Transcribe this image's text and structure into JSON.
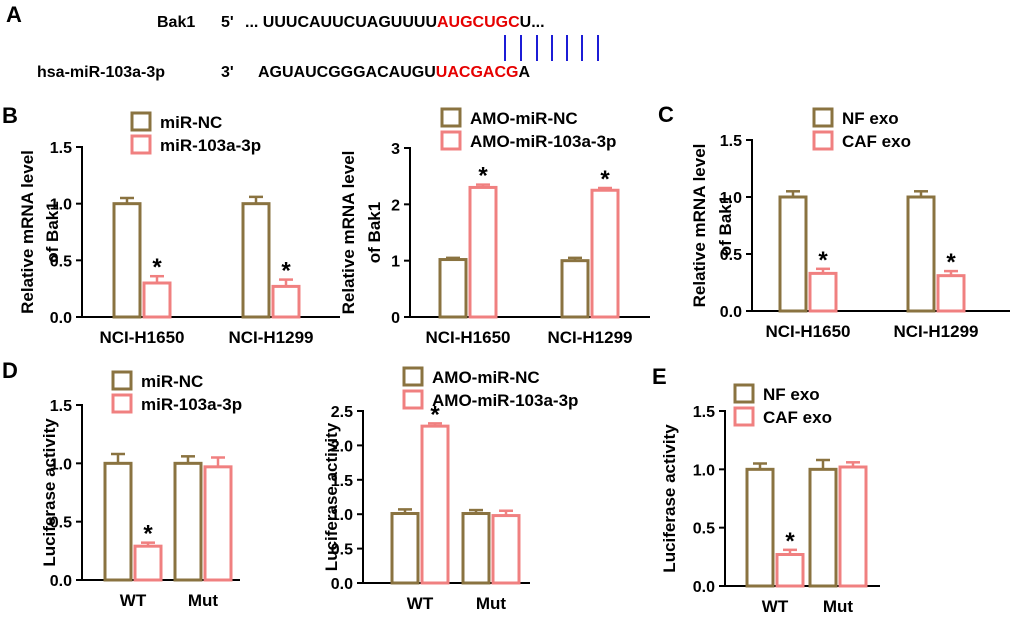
{
  "colors": {
    "control": "#8a7340",
    "treatment": "#f08080",
    "seed": "#e60000",
    "pairing": "#1c1cd6",
    "axis": "#000000"
  },
  "panel_a": {
    "panel_label": "A",
    "target": {
      "name": "Bak1",
      "end": "5'",
      "prefix": "... UUUCAUUCUAGUUUU",
      "seed": "AUGCUGC",
      "suffix": "U..."
    },
    "mirna": {
      "name": "hsa-miR-103a-3p",
      "end": "3'",
      "prefix": "AGUAUCGGGACAUGU",
      "seed": "UACGACG",
      "suffix": "A"
    }
  },
  "chart_data": [
    {
      "panel": "B",
      "show_panel_label": true,
      "type": "bar",
      "ylabel": "Relative mRNA level of Bak1",
      "ylabel_lines": [
        "Relative mRNA level",
        "of Bak1"
      ],
      "categories": [
        "NCI-H1650",
        "NCI-H1299"
      ],
      "ylim": [
        0,
        1.5
      ],
      "yticks": [
        "0.0",
        "0.5",
        "1.0",
        "1.5"
      ],
      "legend_position": "top",
      "series": [
        {
          "name": "miR-NC",
          "color_key": "control",
          "values": [
            1.0,
            1.0
          ],
          "errors": [
            0.05,
            0.06
          ]
        },
        {
          "name": "miR-103a-3p",
          "color_key": "treatment",
          "values": [
            0.3,
            0.27
          ],
          "errors": [
            0.06,
            0.06
          ]
        }
      ],
      "annotations": [
        {
          "series": 1,
          "category": 0,
          "text": "*"
        },
        {
          "series": 1,
          "category": 1,
          "text": "*"
        }
      ]
    },
    {
      "panel": "B2",
      "show_panel_label": false,
      "type": "bar",
      "ylabel": "Relative mRNA level of Bak1",
      "ylabel_lines": [
        "Relative mRNA level",
        "of Bak1"
      ],
      "categories": [
        "NCI-H1650",
        "NCI-H1299"
      ],
      "ylim": [
        0,
        3
      ],
      "yticks": [
        "0",
        "1",
        "2",
        "3"
      ],
      "legend_position": "top",
      "series": [
        {
          "name": "AMO-miR-NC",
          "color_key": "control",
          "values": [
            1.02,
            1.0
          ],
          "errors": [
            0.03,
            0.05
          ]
        },
        {
          "name": "AMO-miR-103a-3p",
          "color_key": "treatment",
          "values": [
            2.3,
            2.25
          ],
          "errors": [
            0.05,
            0.04
          ]
        }
      ],
      "annotations": [
        {
          "series": 1,
          "category": 0,
          "text": "*"
        },
        {
          "series": 1,
          "category": 1,
          "text": "*"
        }
      ]
    },
    {
      "panel": "C",
      "show_panel_label": true,
      "type": "bar",
      "ylabel": "Relative mRNA level of Bak1",
      "ylabel_lines": [
        "Relative mRNA level",
        "of Bak1"
      ],
      "categories": [
        "NCI-H1650",
        "NCI-H1299"
      ],
      "ylim": [
        0,
        1.5
      ],
      "yticks": [
        "0.0",
        "0.5",
        "1.0",
        "1.5"
      ],
      "legend_position": "top",
      "series": [
        {
          "name": "NF exo",
          "color_key": "control",
          "values": [
            1.0,
            1.0
          ],
          "errors": [
            0.05,
            0.05
          ]
        },
        {
          "name": "CAF exo",
          "color_key": "treatment",
          "values": [
            0.33,
            0.31
          ],
          "errors": [
            0.04,
            0.04
          ]
        }
      ],
      "annotations": [
        {
          "series": 1,
          "category": 0,
          "text": "*"
        },
        {
          "series": 1,
          "category": 1,
          "text": "*"
        }
      ]
    },
    {
      "panel": "D",
      "show_panel_label": true,
      "type": "bar",
      "ylabel": "Luciferase activity",
      "ylabel_lines": [
        "Luciferase activity"
      ],
      "categories": [
        "WT",
        "Mut"
      ],
      "ylim": [
        0,
        1.5
      ],
      "yticks": [
        "0.0",
        "0.5",
        "1.0",
        "1.5"
      ],
      "legend_position": "top",
      "series": [
        {
          "name": "miR-NC",
          "color_key": "control",
          "values": [
            1.0,
            1.0
          ],
          "errors": [
            0.08,
            0.06
          ]
        },
        {
          "name": "miR-103a-3p",
          "color_key": "treatment",
          "values": [
            0.29,
            0.97
          ],
          "errors": [
            0.03,
            0.08
          ]
        }
      ],
      "annotations": [
        {
          "series": 1,
          "category": 0,
          "text": "*"
        }
      ]
    },
    {
      "panel": "D2",
      "show_panel_label": false,
      "type": "bar",
      "ylabel": "Luciferase activity",
      "ylabel_lines": [
        "Luciferase activity"
      ],
      "categories": [
        "WT",
        "Mut"
      ],
      "ylim": [
        0,
        2.5
      ],
      "yticks": [
        "0.0",
        "0.5",
        "1.0",
        "1.5",
        "2.0",
        "2.5"
      ],
      "legend_position": "top",
      "series": [
        {
          "name": "AMO-miR-NC",
          "color_key": "control",
          "values": [
            1.01,
            1.01
          ],
          "errors": [
            0.06,
            0.05
          ]
        },
        {
          "name": "AMO-miR-103a-3p",
          "color_key": "treatment",
          "values": [
            2.28,
            0.98
          ],
          "errors": [
            0.04,
            0.07
          ]
        }
      ],
      "annotations": [
        {
          "series": 1,
          "category": 0,
          "text": "*"
        }
      ]
    },
    {
      "panel": "E",
      "show_panel_label": true,
      "type": "bar",
      "ylabel": "Luciferase activity",
      "ylabel_lines": [
        "Luciferase activity"
      ],
      "categories": [
        "WT",
        "Mut"
      ],
      "ylim": [
        0,
        1.5
      ],
      "yticks": [
        "0.0",
        "0.5",
        "1.0",
        "1.5"
      ],
      "legend_position": "top",
      "series": [
        {
          "name": "NF exo",
          "color_key": "control",
          "values": [
            1.0,
            1.0
          ],
          "errors": [
            0.05,
            0.08
          ]
        },
        {
          "name": "CAF exo",
          "color_key": "treatment",
          "values": [
            0.27,
            1.02
          ],
          "errors": [
            0.04,
            0.04
          ]
        }
      ],
      "annotations": [
        {
          "series": 1,
          "category": 0,
          "text": "*"
        }
      ]
    }
  ]
}
